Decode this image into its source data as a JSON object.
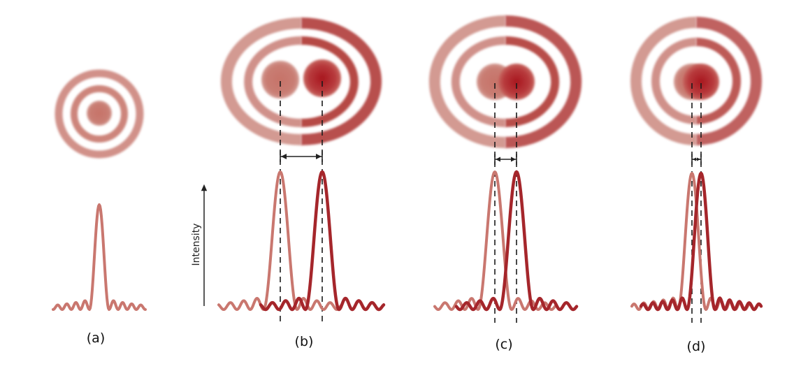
{
  "axis": {
    "label": "Intensity"
  },
  "colors": {
    "source_left": "#c9776f",
    "source_right": "#a5262b",
    "source_left_core": "#c27066",
    "source_right_core": "#b5262c",
    "guide": "#1a1a1a"
  },
  "panels": [
    {
      "id": "a",
      "label": "(a)",
      "sources": 1
    },
    {
      "id": "b",
      "label": "(b)",
      "sources": 2,
      "relative_separation": 1.0
    },
    {
      "id": "c",
      "label": "(c)",
      "sources": 2,
      "relative_separation": 0.52
    },
    {
      "id": "d",
      "label": "(d)",
      "sources": 2,
      "relative_separation": 0.2
    }
  ]
}
